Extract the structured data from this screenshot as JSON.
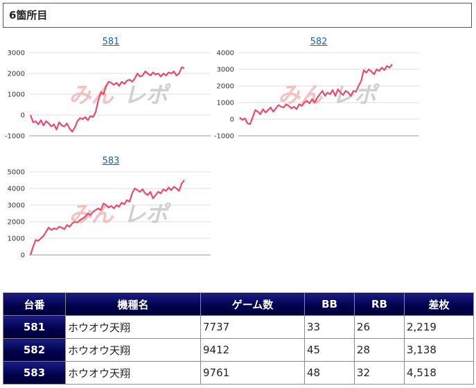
{
  "section_title": "6箇所目",
  "charts": [
    {
      "label": "581",
      "yticks": [
        3000,
        2000,
        1000,
        0,
        -1000
      ],
      "ylim": [
        -1000,
        3000
      ],
      "values": [
        0,
        -350,
        -300,
        -450,
        -250,
        -500,
        -300,
        -400,
        -550,
        -450,
        -700,
        -350,
        -500,
        -550,
        -400,
        -650,
        -800,
        -600,
        -300,
        -150,
        -200,
        -100,
        -250,
        -50,
        -100,
        150,
        700,
        1100,
        1000,
        1400,
        1600,
        1550,
        1450,
        1550,
        1400,
        1600,
        1500,
        1650,
        1700,
        1600,
        1750,
        2000,
        1850,
        1900,
        2100,
        2000,
        1900,
        2050,
        1950,
        2000,
        1850,
        2000,
        1900,
        2050,
        2000,
        2100,
        1900,
        2000,
        2300,
        2250
      ]
    },
    {
      "label": "582",
      "yticks": [
        4000,
        3000,
        2000,
        1000,
        0,
        -1000
      ],
      "ylim": [
        -1000,
        4000
      ],
      "values": [
        100,
        -50,
        50,
        -250,
        -300,
        100,
        550,
        450,
        300,
        600,
        400,
        550,
        700,
        450,
        650,
        850,
        750,
        700,
        900,
        800,
        650,
        750,
        600,
        900,
        800,
        1000,
        1100,
        950,
        1200,
        1000,
        1300,
        1500,
        1700,
        1400,
        1600,
        1500,
        1750,
        1400,
        1800,
        1600,
        1450,
        1700,
        1600,
        1400,
        1700,
        1650,
        2000,
        2300,
        2950,
        2800,
        3000,
        2850,
        2700,
        3000,
        2900,
        3100,
        2950,
        3200,
        3100,
        3300
      ]
    },
    {
      "label": "583",
      "yticks": [
        5000,
        4000,
        3000,
        2000,
        1000,
        0
      ],
      "ylim": [
        0,
        5000
      ],
      "values": [
        0,
        500,
        900,
        850,
        1000,
        1150,
        1400,
        1650,
        1500,
        1600,
        1550,
        1700,
        1650,
        1550,
        1800,
        1700,
        1900,
        2000,
        1950,
        2100,
        2200,
        2300,
        2500,
        2400,
        2600,
        2700,
        2800,
        2700,
        3100,
        3000,
        2850,
        2950,
        2800,
        3000,
        2900,
        3150,
        3050,
        3300,
        3200,
        3700,
        4000,
        3900,
        3800,
        3950,
        3700,
        3600,
        3800,
        3400,
        3600,
        3800,
        3700,
        3950,
        3850,
        4050,
        3900,
        4100,
        4000,
        3850,
        4300,
        4500
      ]
    }
  ],
  "watermark": {
    "left": "みん",
    "right": "レポ"
  },
  "colors": {
    "line": "#f0486b",
    "grid": "#dddddd",
    "header_bg": "#00004a"
  },
  "table": {
    "headers": [
      "台番",
      "機種名",
      "ゲーム数",
      "BB",
      "RB",
      "差枚"
    ],
    "rows": [
      {
        "unit": "581",
        "machine": "ホウオウ天翔",
        "games": "7737",
        "bb": "33",
        "rb": "26",
        "diff": "2,219"
      },
      {
        "unit": "582",
        "machine": "ホウオウ天翔",
        "games": "9412",
        "bb": "45",
        "rb": "28",
        "diff": "3,138"
      },
      {
        "unit": "583",
        "machine": "ホウオウ天翔",
        "games": "9761",
        "bb": "48",
        "rb": "32",
        "diff": "4,518"
      }
    ]
  }
}
